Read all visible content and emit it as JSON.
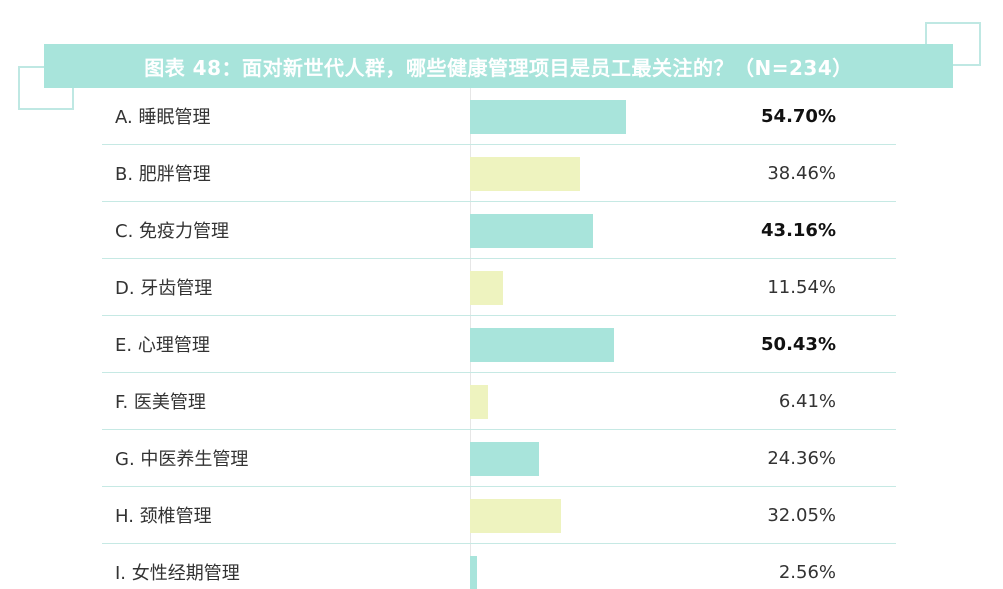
{
  "chart_data": {
    "type": "bar",
    "orientation": "horizontal",
    "title": "图表 48：面对新世代人群，哪些健康管理项目是员工最关注的？（N=234）",
    "categories": [
      "A. 睡眠管理",
      "B. 肥胖管理",
      "C. 免疫力管理",
      "D. 牙齿管理",
      "E. 心理管理",
      "F. 医美管理",
      "G. 中医养生管理",
      "H. 颈椎管理",
      "I. 女性经期管理"
    ],
    "values": [
      54.7,
      38.46,
      43.16,
      11.54,
      50.43,
      6.41,
      24.36,
      32.05,
      2.56
    ],
    "value_labels": [
      "54.70%",
      "38.46%",
      "43.16%",
      "11.54%",
      "50.43%",
      "6.41%",
      "24.36%",
      "32.05%",
      "2.56%"
    ],
    "bold_values": [
      true,
      false,
      true,
      false,
      true,
      false,
      false,
      false,
      false
    ],
    "bar_colors": [
      "#a8e4db",
      "#eef3bf",
      "#a8e4db",
      "#eef3bf",
      "#a8e4db",
      "#eef3bf",
      "#a8e4db",
      "#eef3bf",
      "#a8e4db"
    ],
    "xlim": [
      0,
      100
    ],
    "grid": false,
    "legend": "none"
  },
  "colors": {
    "title_band": "#a8e4db",
    "title_text": "#ffffff",
    "separator": "#c6e9e4",
    "accent_teal": "#a8e4db",
    "accent_yellow": "#eef3bf"
  }
}
